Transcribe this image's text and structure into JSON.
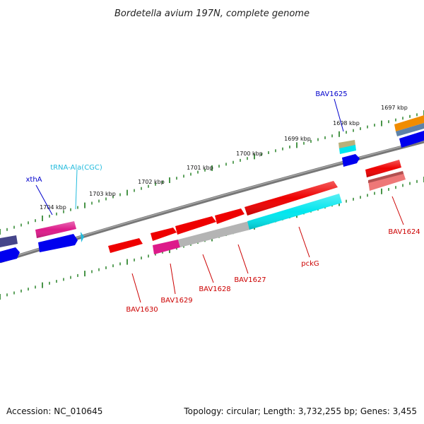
{
  "title": "Bordetella avium 197N, complete genome",
  "footer": {
    "accession": "Accession: NC_010645",
    "topology": "Topology: circular; Length: 3,732,255 bp; Genes: 3,455"
  },
  "colors": {
    "backbone": "#777777",
    "tick": "#1a7a1a",
    "label_blue": "#0000cc",
    "label_red": "#cc0000",
    "label_cyan": "#22bbdd",
    "gene_red": "#ee0000",
    "gene_magenta": "#dd1a8a",
    "gene_blue": "#0000ee",
    "gene_cyan": "#00e6ee",
    "gene_gray": "#b4b4b4",
    "gene_navy": "#45458a",
    "gene_tan": "#b9b07a",
    "gene_orange": "#f08c00",
    "gene_steel": "#5d82a8",
    "gene_rose": "#ee7777"
  },
  "ticks": [
    {
      "label": "1697 kbp"
    },
    {
      "label": "1698 kbp"
    },
    {
      "label": "1699 kbp"
    },
    {
      "label": "1700 kbp"
    },
    {
      "label": "1701 kbp"
    },
    {
      "label": "1702 kbp"
    },
    {
      "label": "1703 kbp"
    },
    {
      "label": "1704 kbp"
    }
  ],
  "gene_labels": {
    "bav1625": "BAV1625",
    "xtha": "xthA",
    "trna_ala": "tRNA-Ala(CGC)",
    "bav1624": "BAV1624",
    "pckg": "pckG",
    "bav1627": "BAV1627",
    "bav1628": "BAV1628",
    "bav1629": "BAV1629",
    "bav1630": "BAV1630"
  }
}
